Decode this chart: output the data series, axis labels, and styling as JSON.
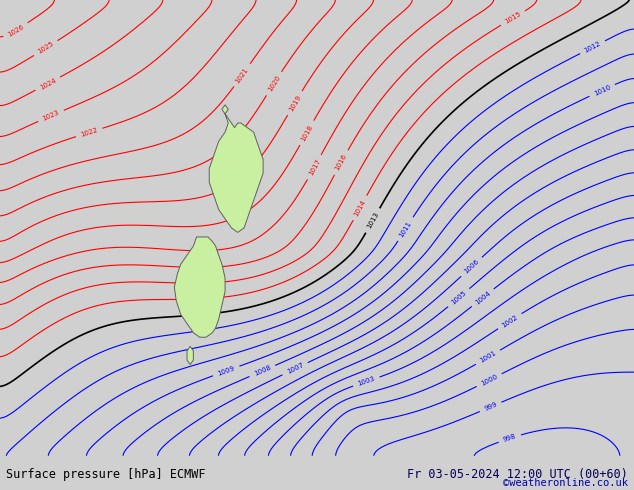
{
  "title_left": "Surface pressure [hPa] ECMWF",
  "title_right": "Fr 03-05-2024 12:00 UTC (00+60)",
  "watermark": "©weatheronline.co.uk",
  "bg_color": "#d0d0d0",
  "land_color": "#c8f0a0",
  "contour_color_red": "#ff0000",
  "contour_color_blue": "#0000ff",
  "contour_color_black": "#000000",
  "font_color_left": "#000000",
  "font_color_right": "#000055",
  "font_color_watermark": "#0000aa",
  "pressure_min": 990,
  "pressure_max": 1028,
  "figsize": [
    6.34,
    4.9
  ],
  "dpi": 100
}
